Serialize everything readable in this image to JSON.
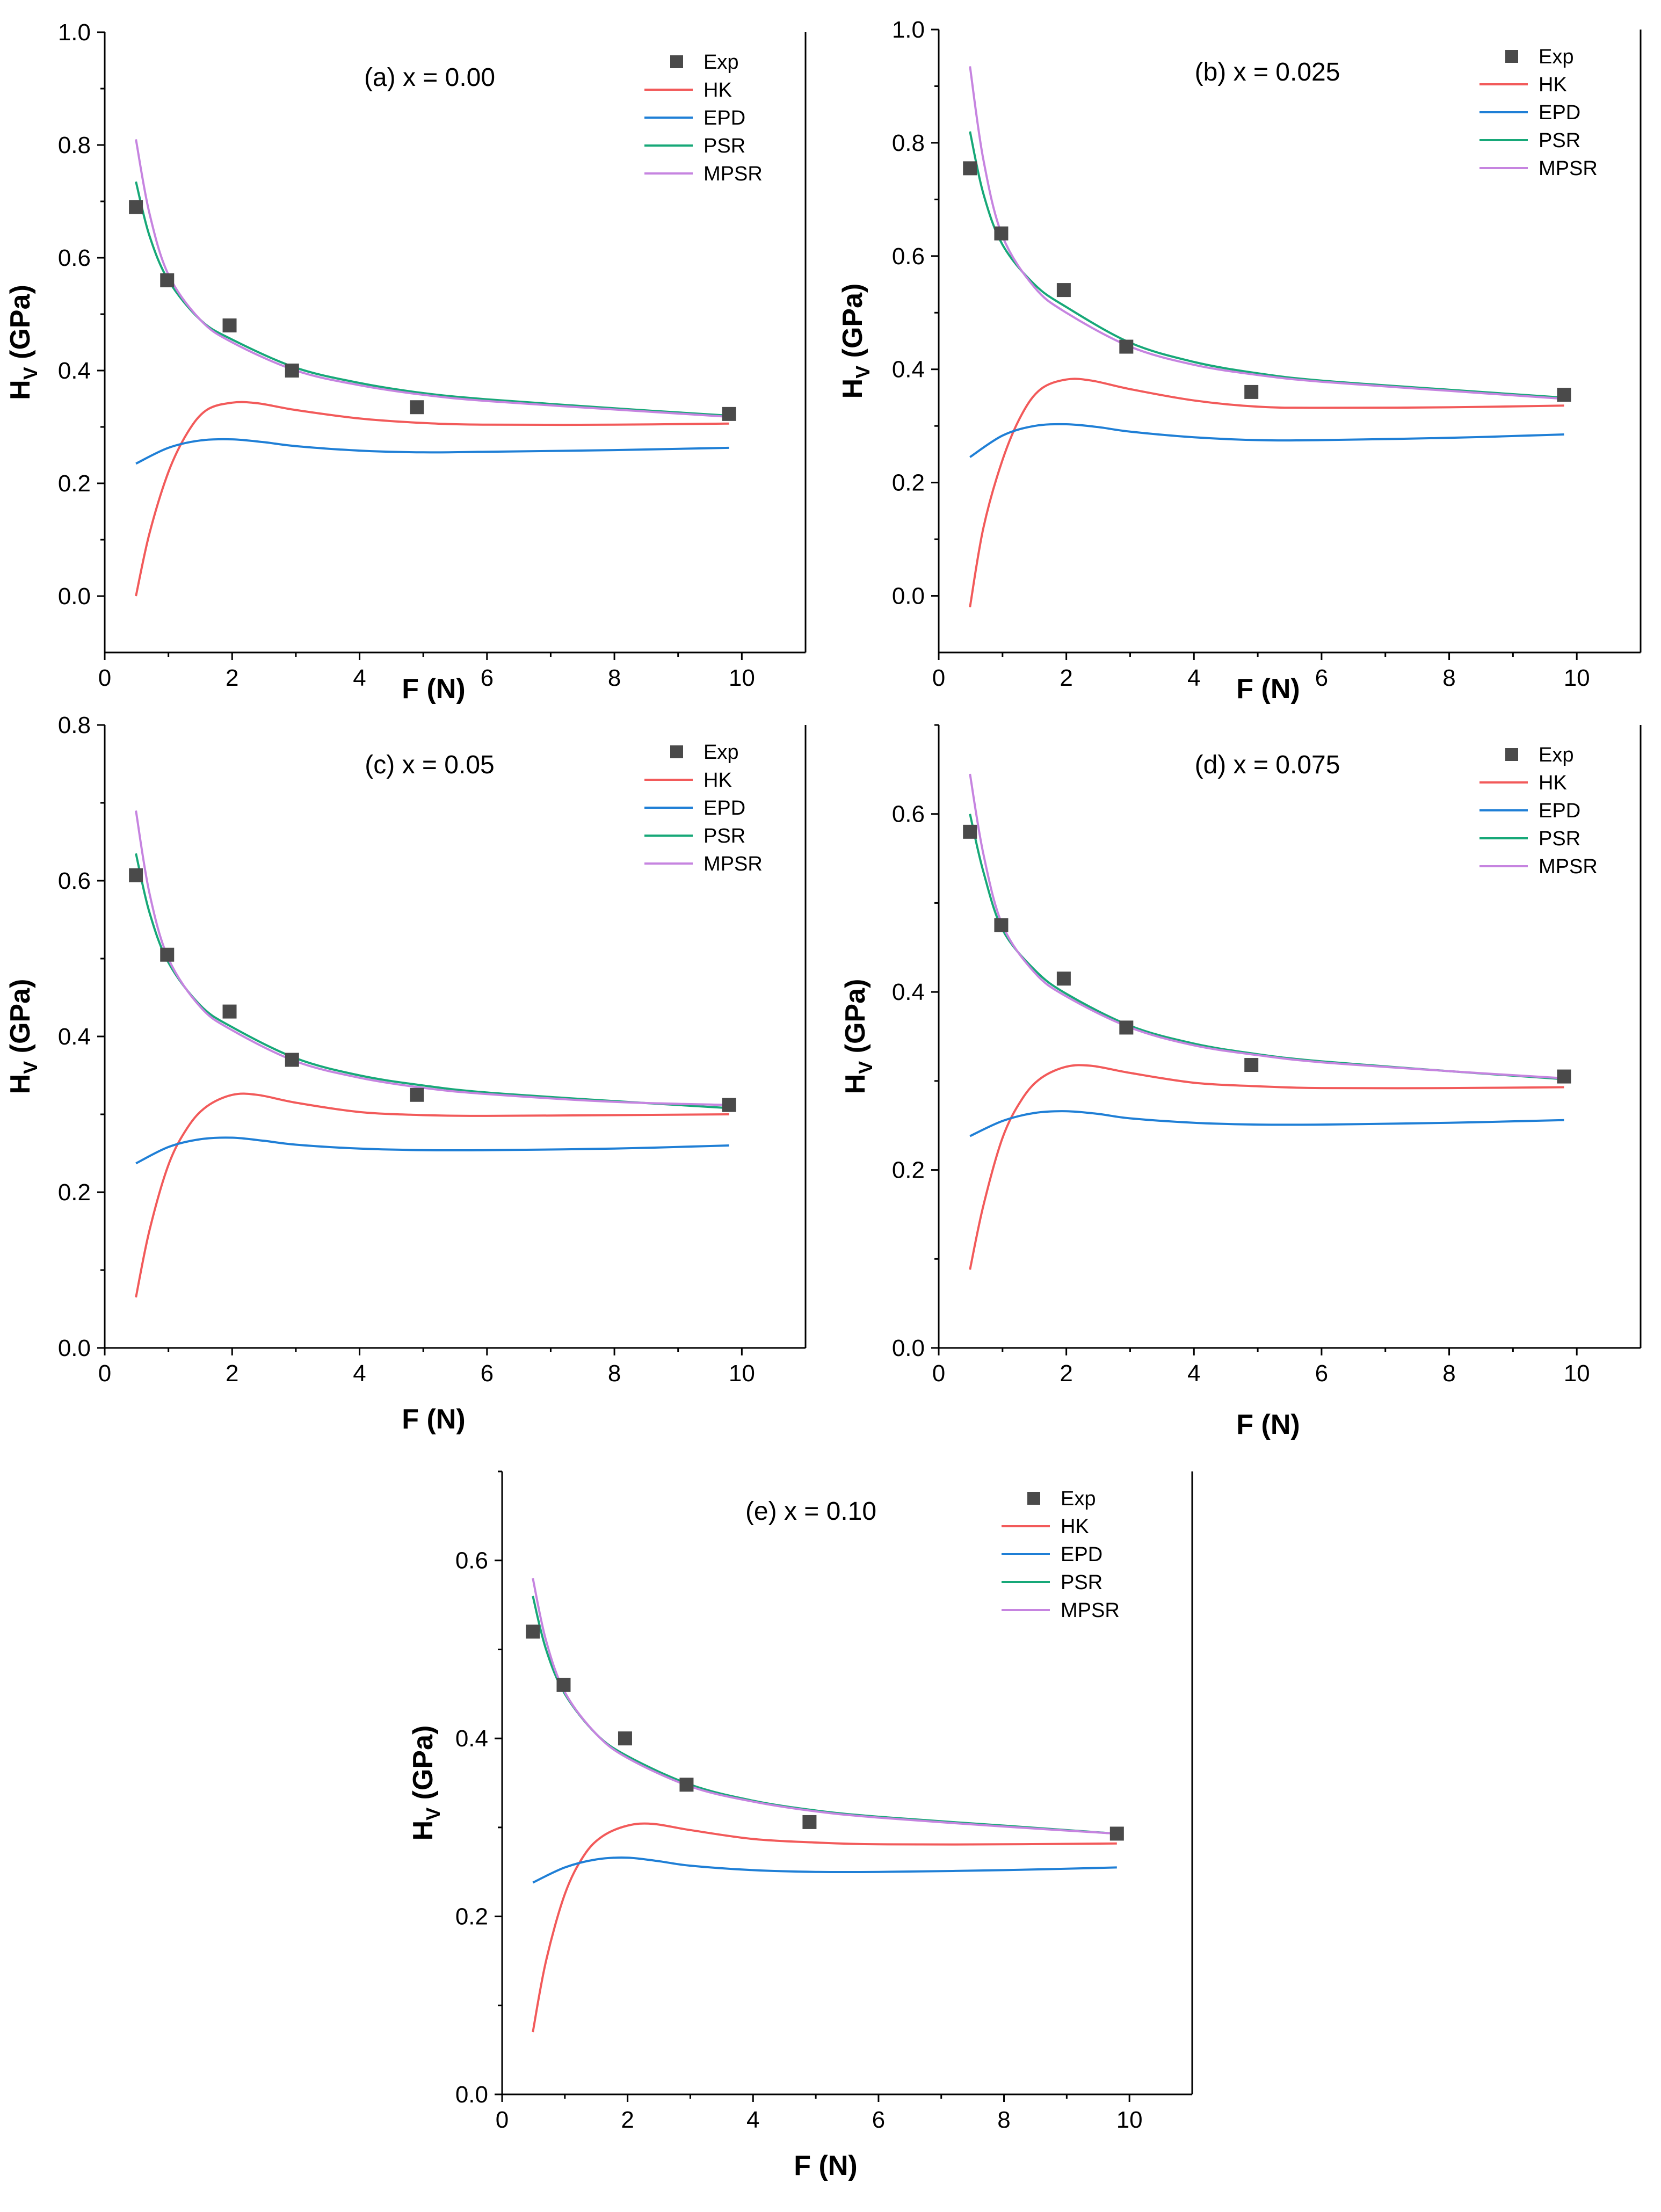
{
  "colors": {
    "exp": "#4a4a4a",
    "HK": "#f25a5a",
    "EPD": "#1f7fd6",
    "PSR": "#17a878",
    "MPSR": "#c684e0",
    "axis": "#000000"
  },
  "legend": {
    "exp": "Exp",
    "HK": "HK",
    "EPD": "EPD",
    "PSR": "PSR",
    "MPSR": "MPSR"
  },
  "axis_labels": {
    "x": "F (N)",
    "y_main": "H",
    "y_sub": "V",
    "y_unit": " (GPa)"
  },
  "chart_data": [
    {
      "type": "scatter+line",
      "title": "(a) x = 0.00",
      "xlabel": "F (N)",
      "ylabel": "HV (GPa)",
      "xlim": [
        0,
        11
      ],
      "ylim": [
        -0.1,
        1.0
      ],
      "xticks": [
        0,
        2,
        4,
        6,
        8,
        10
      ],
      "yticks": [
        0.0,
        0.2,
        0.4,
        0.6,
        0.8,
        1.0
      ],
      "exp": {
        "x": [
          0.49,
          0.98,
          1.96,
          2.94,
          4.9,
          9.8
        ],
        "y": [
          0.69,
          0.56,
          0.48,
          0.4,
          0.335,
          0.323
        ]
      },
      "series": [
        {
          "name": "HK",
          "x": [
            0.49,
            0.7,
            1.0,
            1.3,
            1.6,
            2.0,
            2.4,
            3.0,
            4.0,
            5.0,
            6.0,
            8.0,
            9.8
          ],
          "y": [
            0.0,
            0.11,
            0.22,
            0.29,
            0.33,
            0.343,
            0.342,
            0.33,
            0.315,
            0.307,
            0.304,
            0.304,
            0.306
          ]
        },
        {
          "name": "EPD",
          "x": [
            0.49,
            1.0,
            1.5,
            2.0,
            2.5,
            3.0,
            4.0,
            5.0,
            6.0,
            8.0,
            9.8
          ],
          "y": [
            0.235,
            0.263,
            0.276,
            0.278,
            0.273,
            0.266,
            0.258,
            0.255,
            0.256,
            0.259,
            0.263
          ]
        },
        {
          "name": "PSR",
          "x": [
            0.49,
            0.7,
            1.0,
            1.5,
            2.0,
            3.0,
            4.0,
            5.0,
            6.0,
            8.0,
            9.8
          ],
          "y": [
            0.735,
            0.64,
            0.56,
            0.49,
            0.455,
            0.405,
            0.378,
            0.36,
            0.349,
            0.333,
            0.32
          ]
        },
        {
          "name": "MPSR",
          "x": [
            0.49,
            0.7,
            1.0,
            1.5,
            2.0,
            3.0,
            4.0,
            5.0,
            6.0,
            8.0,
            9.8
          ],
          "y": [
            0.81,
            0.68,
            0.57,
            0.49,
            0.45,
            0.4,
            0.374,
            0.357,
            0.346,
            0.331,
            0.318
          ]
        }
      ]
    },
    {
      "type": "scatter+line",
      "title": "(b) x = 0.025",
      "xlabel": "F (N)",
      "ylabel": "HV (GPa)",
      "xlim": [
        0,
        11
      ],
      "ylim": [
        -0.1,
        1.0
      ],
      "xticks": [
        0,
        2,
        4,
        6,
        8,
        10
      ],
      "yticks": [
        0.0,
        0.2,
        0.4,
        0.6,
        0.8,
        1.0
      ],
      "exp": {
        "x": [
          0.49,
          0.98,
          1.96,
          2.94,
          4.9,
          9.8
        ],
        "y": [
          0.755,
          0.64,
          0.54,
          0.44,
          0.36,
          0.355
        ]
      },
      "series": [
        {
          "name": "HK",
          "x": [
            0.49,
            0.7,
            1.0,
            1.3,
            1.6,
            2.0,
            2.4,
            3.0,
            4.0,
            5.0,
            6.0,
            8.0,
            9.8
          ],
          "y": [
            -0.02,
            0.12,
            0.24,
            0.32,
            0.365,
            0.382,
            0.38,
            0.365,
            0.345,
            0.334,
            0.332,
            0.333,
            0.336
          ]
        },
        {
          "name": "EPD",
          "x": [
            0.49,
            1.0,
            1.5,
            2.0,
            2.5,
            3.0,
            4.0,
            5.0,
            6.0,
            8.0,
            9.8
          ],
          "y": [
            0.245,
            0.283,
            0.3,
            0.303,
            0.298,
            0.29,
            0.28,
            0.275,
            0.275,
            0.279,
            0.285
          ]
        },
        {
          "name": "PSR",
          "x": [
            0.49,
            0.7,
            1.0,
            1.5,
            2.0,
            3.0,
            4.0,
            5.0,
            6.0,
            8.0,
            9.8
          ],
          "y": [
            0.82,
            0.71,
            0.62,
            0.55,
            0.51,
            0.447,
            0.413,
            0.393,
            0.38,
            0.364,
            0.35
          ]
        },
        {
          "name": "MPSR",
          "x": [
            0.49,
            0.7,
            1.0,
            1.5,
            2.0,
            3.0,
            4.0,
            5.0,
            6.0,
            8.0,
            9.8
          ],
          "y": [
            0.935,
            0.77,
            0.635,
            0.545,
            0.5,
            0.44,
            0.408,
            0.39,
            0.378,
            0.362,
            0.348
          ]
        }
      ]
    },
    {
      "type": "scatter+line",
      "title": "(c) x = 0.05",
      "xlabel": "F (N)",
      "ylabel": "HV (GPa)",
      "xlim": [
        0,
        11
      ],
      "ylim": [
        0.0,
        0.8
      ],
      "xticks": [
        0,
        2,
        4,
        6,
        8,
        10
      ],
      "yticks": [
        0.0,
        0.2,
        0.4,
        0.6,
        0.8
      ],
      "exp": {
        "x": [
          0.49,
          0.98,
          1.96,
          2.94,
          4.9,
          9.8
        ],
        "y": [
          0.607,
          0.505,
          0.432,
          0.37,
          0.325,
          0.312
        ]
      },
      "series": [
        {
          "name": "HK",
          "x": [
            0.49,
            0.7,
            1.0,
            1.3,
            1.6,
            2.0,
            2.4,
            3.0,
            4.0,
            5.0,
            6.0,
            8.0,
            9.8
          ],
          "y": [
            0.065,
            0.15,
            0.235,
            0.283,
            0.31,
            0.325,
            0.325,
            0.315,
            0.303,
            0.299,
            0.298,
            0.299,
            0.3
          ]
        },
        {
          "name": "EPD",
          "x": [
            0.49,
            1.0,
            1.5,
            2.0,
            2.5,
            3.0,
            4.0,
            5.0,
            6.0,
            8.0,
            9.8
          ],
          "y": [
            0.237,
            0.258,
            0.268,
            0.27,
            0.266,
            0.261,
            0.256,
            0.254,
            0.254,
            0.256,
            0.26
          ]
        },
        {
          "name": "PSR",
          "x": [
            0.49,
            0.7,
            1.0,
            1.5,
            2.0,
            3.0,
            4.0,
            5.0,
            6.0,
            8.0,
            9.8
          ],
          "y": [
            0.635,
            0.56,
            0.495,
            0.44,
            0.412,
            0.372,
            0.35,
            0.337,
            0.328,
            0.317,
            0.308
          ]
        },
        {
          "name": "MPSR",
          "x": [
            0.49,
            0.7,
            1.0,
            1.5,
            2.0,
            3.0,
            4.0,
            5.0,
            6.0,
            8.0,
            9.8
          ],
          "y": [
            0.69,
            0.585,
            0.5,
            0.438,
            0.408,
            0.368,
            0.347,
            0.334,
            0.326,
            0.316,
            0.312
          ]
        }
      ]
    },
    {
      "type": "scatter+line",
      "title": "(d) x = 0.075",
      "xlabel": "F (N)",
      "ylabel": "HV (GPa)",
      "xlim": [
        0,
        11
      ],
      "ylim": [
        0.0,
        0.7
      ],
      "xticks": [
        0,
        2,
        4,
        6,
        8,
        10
      ],
      "yticks": [
        0.0,
        0.2,
        0.4,
        0.6
      ],
      "exp": {
        "x": [
          0.49,
          0.98,
          1.96,
          2.94,
          4.9,
          9.8
        ],
        "y": [
          0.58,
          0.475,
          0.415,
          0.36,
          0.318,
          0.305
        ]
      },
      "series": [
        {
          "name": "HK",
          "x": [
            0.49,
            0.7,
            1.0,
            1.3,
            1.6,
            2.0,
            2.4,
            3.0,
            4.0,
            5.0,
            6.0,
            8.0,
            9.8
          ],
          "y": [
            0.088,
            0.16,
            0.236,
            0.279,
            0.303,
            0.316,
            0.317,
            0.309,
            0.298,
            0.294,
            0.292,
            0.292,
            0.293
          ]
        },
        {
          "name": "EPD",
          "x": [
            0.49,
            1.0,
            1.5,
            2.0,
            2.5,
            3.0,
            4.0,
            5.0,
            6.0,
            8.0,
            9.8
          ],
          "y": [
            0.238,
            0.255,
            0.264,
            0.266,
            0.263,
            0.258,
            0.253,
            0.251,
            0.251,
            0.253,
            0.256
          ]
        },
        {
          "name": "PSR",
          "x": [
            0.49,
            0.7,
            1.0,
            1.5,
            2.0,
            3.0,
            4.0,
            5.0,
            6.0,
            8.0,
            9.8
          ],
          "y": [
            0.6,
            0.535,
            0.47,
            0.425,
            0.398,
            0.362,
            0.342,
            0.33,
            0.322,
            0.311,
            0.302
          ]
        },
        {
          "name": "MPSR",
          "x": [
            0.49,
            0.7,
            1.0,
            1.5,
            2.0,
            3.0,
            4.0,
            5.0,
            6.0,
            8.0,
            9.8
          ],
          "y": [
            0.645,
            0.555,
            0.475,
            0.422,
            0.395,
            0.36,
            0.34,
            0.329,
            0.321,
            0.311,
            0.303
          ]
        }
      ]
    },
    {
      "type": "scatter+line",
      "title": "(e) x = 0.10",
      "xlabel": "F (N)",
      "ylabel": "HV (GPa)",
      "xlim": [
        0,
        11
      ],
      "ylim": [
        0.0,
        0.7
      ],
      "xticks": [
        0,
        2,
        4,
        6,
        8,
        10
      ],
      "yticks": [
        0.0,
        0.2,
        0.4,
        0.6
      ],
      "exp": {
        "x": [
          0.49,
          0.98,
          1.96,
          2.94,
          4.9,
          9.8
        ],
        "y": [
          0.52,
          0.46,
          0.4,
          0.348,
          0.306,
          0.293
        ]
      },
      "series": [
        {
          "name": "HK",
          "x": [
            0.49,
            0.7,
            1.0,
            1.3,
            1.6,
            2.0,
            2.4,
            3.0,
            4.0,
            5.0,
            6.0,
            8.0,
            9.8
          ],
          "y": [
            0.07,
            0.15,
            0.225,
            0.268,
            0.29,
            0.302,
            0.304,
            0.297,
            0.287,
            0.283,
            0.281,
            0.281,
            0.282
          ]
        },
        {
          "name": "EPD",
          "x": [
            0.49,
            1.0,
            1.5,
            2.0,
            2.5,
            3.0,
            4.0,
            5.0,
            6.0,
            8.0,
            9.8
          ],
          "y": [
            0.238,
            0.255,
            0.264,
            0.266,
            0.262,
            0.257,
            0.252,
            0.25,
            0.25,
            0.252,
            0.255
          ]
        },
        {
          "name": "PSR",
          "x": [
            0.49,
            0.7,
            1.0,
            1.5,
            2.0,
            3.0,
            4.0,
            5.0,
            6.0,
            8.0,
            9.8
          ],
          "y": [
            0.56,
            0.5,
            0.45,
            0.405,
            0.38,
            0.348,
            0.33,
            0.319,
            0.312,
            0.302,
            0.293
          ]
        },
        {
          "name": "MPSR",
          "x": [
            0.49,
            0.7,
            1.0,
            1.5,
            2.0,
            3.0,
            4.0,
            5.0,
            6.0,
            8.0,
            9.8
          ],
          "y": [
            0.58,
            0.51,
            0.452,
            0.405,
            0.378,
            0.346,
            0.329,
            0.318,
            0.311,
            0.301,
            0.293
          ]
        }
      ]
    }
  ]
}
